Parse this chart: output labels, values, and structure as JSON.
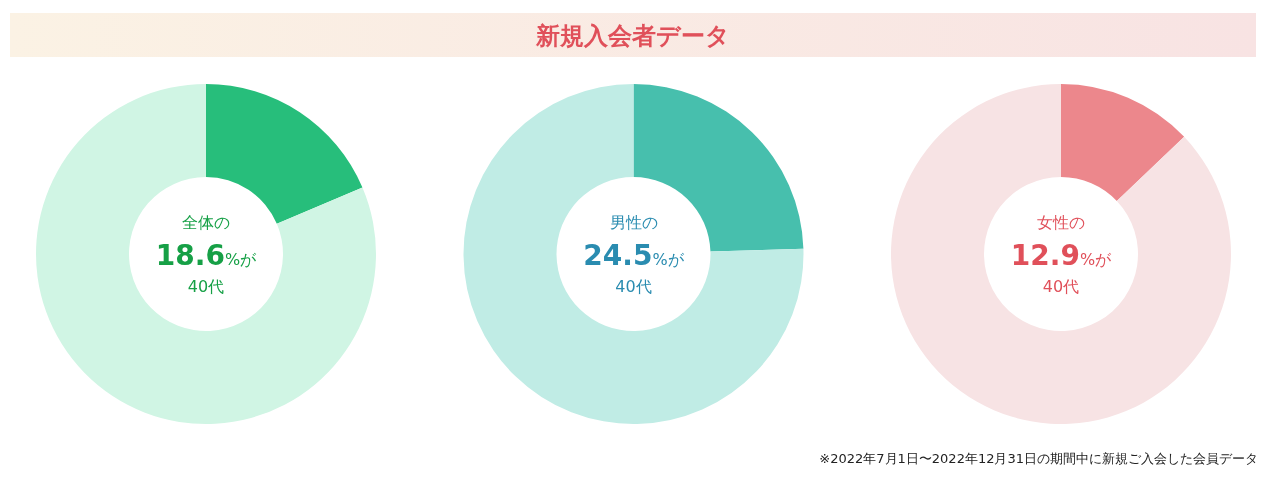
{
  "chart_data": [
    {
      "type": "other",
      "title": "新規入会者データ"
    },
    {
      "type": "donut",
      "subtitle": "全体の",
      "categories": [
        null,
        null
      ],
      "values": [
        18.6,
        81.4
      ],
      "colors": [
        "#27be7b",
        "#d0f5e4"
      ],
      "annotations": [
        "18.6%が",
        "40代"
      ]
    },
    {
      "type": "donut",
      "subtitle": "男性の",
      "categories": [
        null,
        null
      ],
      "values": [
        24.5,
        75.5
      ],
      "colors": [
        "#47bfad",
        "#c0ece5"
      ],
      "annotations": [
        "24.5%が",
        "40代"
      ]
    },
    {
      "type": "donut",
      "subtitle": "女性の",
      "categories": [
        null,
        null
      ],
      "values": [
        12.9,
        87.1
      ],
      "colors": [
        "#ec878c",
        "#f7e3e4"
      ],
      "annotations": [
        "12.9%が",
        "40代",
        "※2022年7月1日〜2022年12月31日の期間中に新規ご入会した会員データ"
      ]
    }
  ]
}
